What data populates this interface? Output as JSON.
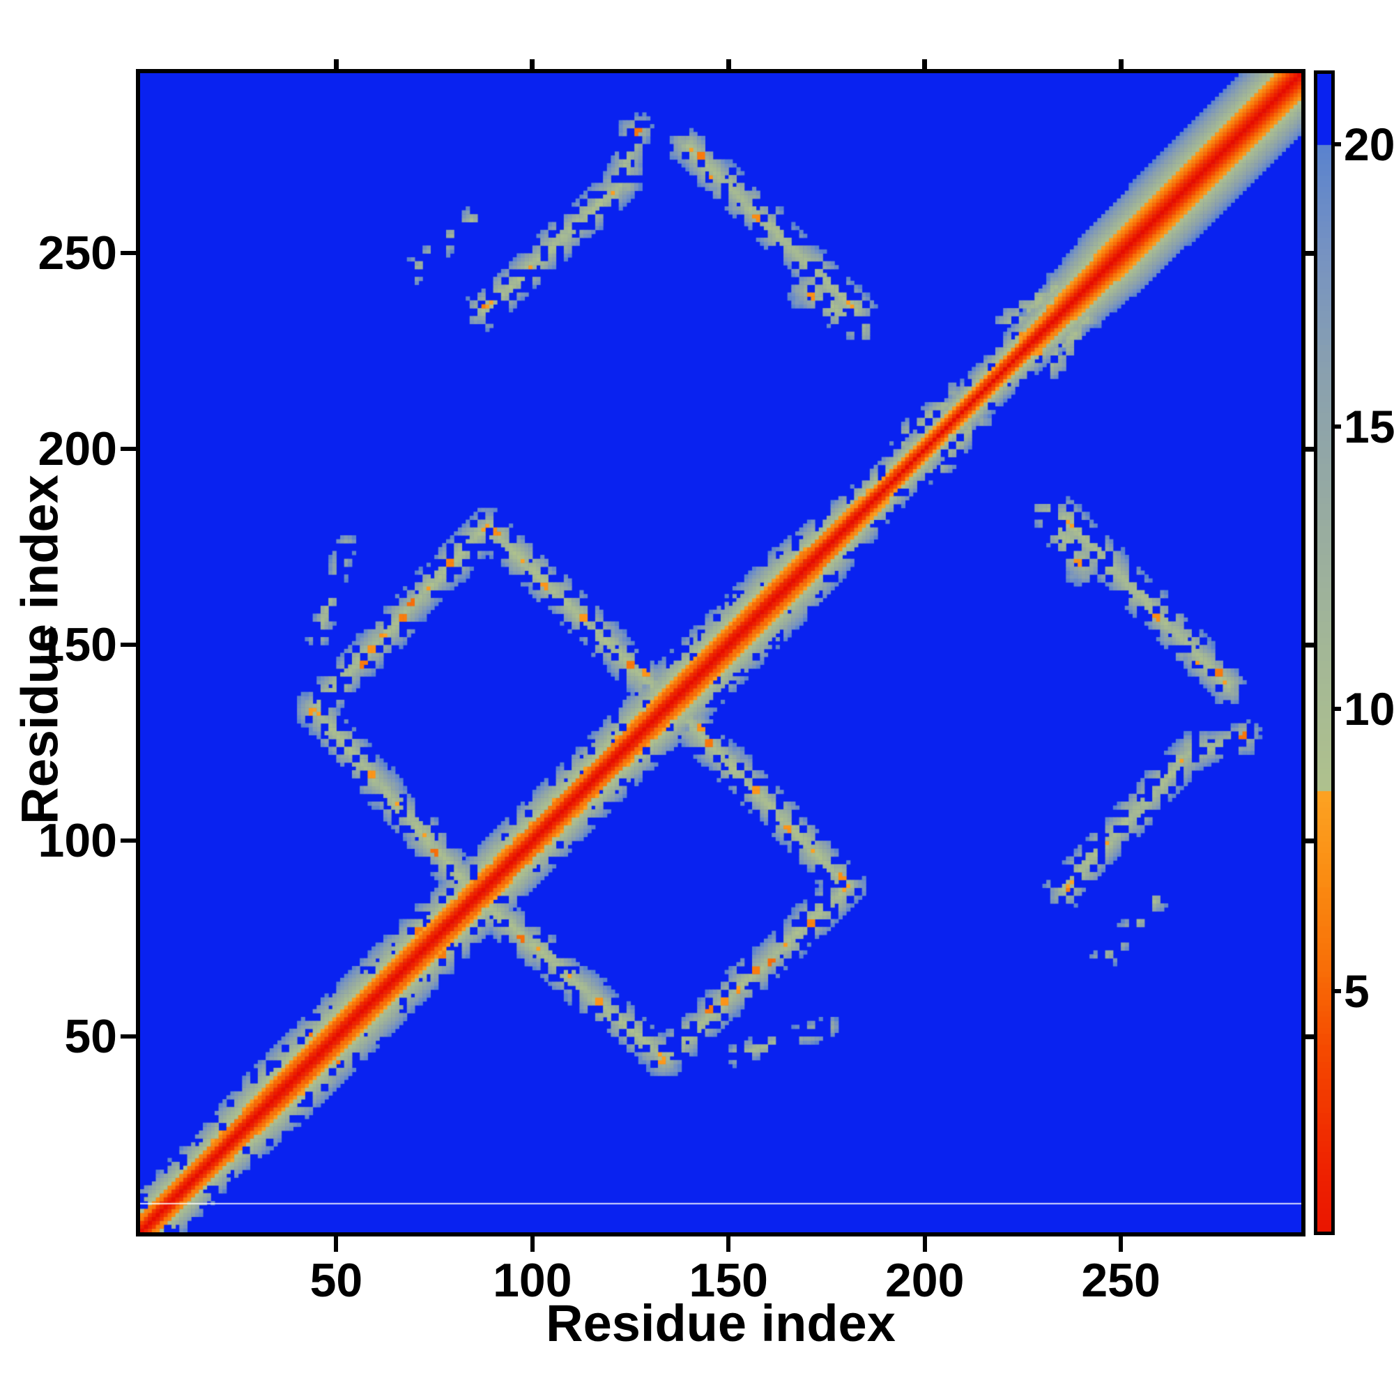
{
  "chart_data": {
    "type": "heatmap",
    "title": "",
    "xlabel": "Residue index",
    "ylabel": "Residue index",
    "x_ticks": [
      50,
      100,
      150,
      200,
      250
    ],
    "y_ticks": [
      50,
      100,
      150,
      200,
      250
    ],
    "xlim": [
      0,
      296
    ],
    "ylim": [
      0,
      296
    ],
    "n_residues": 296,
    "grid": false,
    "legend": "none",
    "colorbar": {
      "position": "right",
      "ticks": [
        5,
        10,
        15,
        20
      ],
      "vmin": 0.8,
      "vmax": 21.3,
      "clip_blue_above": 20
    },
    "colors": {
      "background_blue": "#0922F0",
      "frame_black": "#000000",
      "white_line": "#FFFFFF",
      "warm_stops": [
        [
          0,
          "#E60C00"
        ],
        [
          2,
          "#EF2400"
        ],
        [
          4,
          "#F54A00"
        ],
        [
          5.5,
          "#F87008"
        ],
        [
          7,
          "#FA8C12"
        ],
        [
          8.5,
          "#FCA222"
        ]
      ],
      "cool_stops": [
        [
          8.5,
          "#AFC18D"
        ],
        [
          11,
          "#A3B796"
        ],
        [
          13.5,
          "#97ABA1"
        ],
        [
          16,
          "#89A0AF"
        ],
        [
          18,
          "#7793C1"
        ],
        [
          20,
          "#5A82CE"
        ]
      ]
    },
    "diagonal_profile": {
      "description": "distance grows with |i-j|; k = Angstrom per residue separation, varies along chain",
      "k_control_points": [
        [
          0,
          1.8
        ],
        [
          18,
          1.8
        ],
        [
          35,
          1.45
        ],
        [
          60,
          1.5
        ],
        [
          85,
          1.55
        ],
        [
          100,
          1.6
        ],
        [
          118,
          1.65
        ],
        [
          142,
          1.48
        ],
        [
          168,
          1.52
        ],
        [
          188,
          2.2
        ],
        [
          205,
          2.6
        ],
        [
          220,
          2.4
        ],
        [
          232,
          1.8
        ],
        [
          248,
          1.35
        ],
        [
          296,
          1.28
        ]
      ],
      "smooth_from": 234
    },
    "contact_bands": [
      {
        "name": "sheet-E1-antiparallel",
        "p1": [
          44,
          133
        ],
        "p2": [
          84,
          87
        ],
        "core": 9.2,
        "falloff": 2.25,
        "hole": 0.2,
        "orange": 0.07,
        "sparse": false
      },
      {
        "name": "sheet-E2-parallel",
        "p1": [
          44,
          133
        ],
        "p2": [
          88,
          180
        ],
        "core": 9.2,
        "falloff": 2.25,
        "hole": 0.2,
        "orange": 0.07,
        "sparse": false
      },
      {
        "name": "sheet-E3-antiparallel",
        "p1": [
          88,
          180
        ],
        "p2": [
          133,
          136
        ],
        "core": 9.2,
        "falloff": 2.25,
        "hole": 0.2,
        "orange": 0.07,
        "sparse": false
      },
      {
        "name": "band-A-parallel",
        "p1": [
          87,
          235
        ],
        "p2": [
          122,
          267
        ],
        "core": 9.2,
        "falloff": 2.25,
        "hole": 0.2,
        "orange": 0.06,
        "sparse": false
      },
      {
        "name": "band-A-tail",
        "p1": [
          122,
          267
        ],
        "p2": [
          126,
          281
        ],
        "core": 9.6,
        "falloff": 2.4,
        "hole": 0.4,
        "orange": 0.04,
        "sparse": true
      },
      {
        "name": "blob-A2-sparse",
        "p1": [
          67,
          243
        ],
        "p2": [
          84,
          258
        ],
        "core": 10.5,
        "falloff": 3.0,
        "hole": 0.55,
        "orange": 0.01,
        "sparse": true
      },
      {
        "name": "band-B-antiparallel",
        "p1": [
          139,
          277
        ],
        "p2": [
          182,
          235
        ],
        "core": 9.2,
        "falloff": 2.25,
        "hole": 0.2,
        "orange": 0.06,
        "sparse": false
      },
      {
        "name": "band-B-end-blob",
        "p1": [
          170,
          240
        ],
        "p2": [
          183,
          231
        ],
        "core": 9.8,
        "falloff": 2.0,
        "hole": 0.35,
        "orange": 0.03,
        "sparse": false
      },
      {
        "name": "bulge-C1",
        "p1": [
          221,
          231
        ],
        "p2": [
          233,
          241
        ],
        "core": 9.6,
        "falloff": 2.6,
        "hole": 0.3,
        "orange": 0.02,
        "sparse": false
      },
      {
        "name": "scatter-C2",
        "p1": [
          194,
          202
        ],
        "p2": [
          207,
          213
        ],
        "core": 10.2,
        "falloff": 2.8,
        "hole": 0.35,
        "orange": 0.01,
        "sparse": true
      },
      {
        "name": "scatter-D-sparse",
        "p1": [
          45,
          152
        ],
        "p2": [
          52,
          175
        ],
        "core": 10.8,
        "falloff": 3.2,
        "hole": 0.55,
        "orange": 0.01,
        "sparse": true
      }
    ],
    "symmetric": true,
    "white_line_residue": 7.5,
    "noise_seed": 7
  }
}
